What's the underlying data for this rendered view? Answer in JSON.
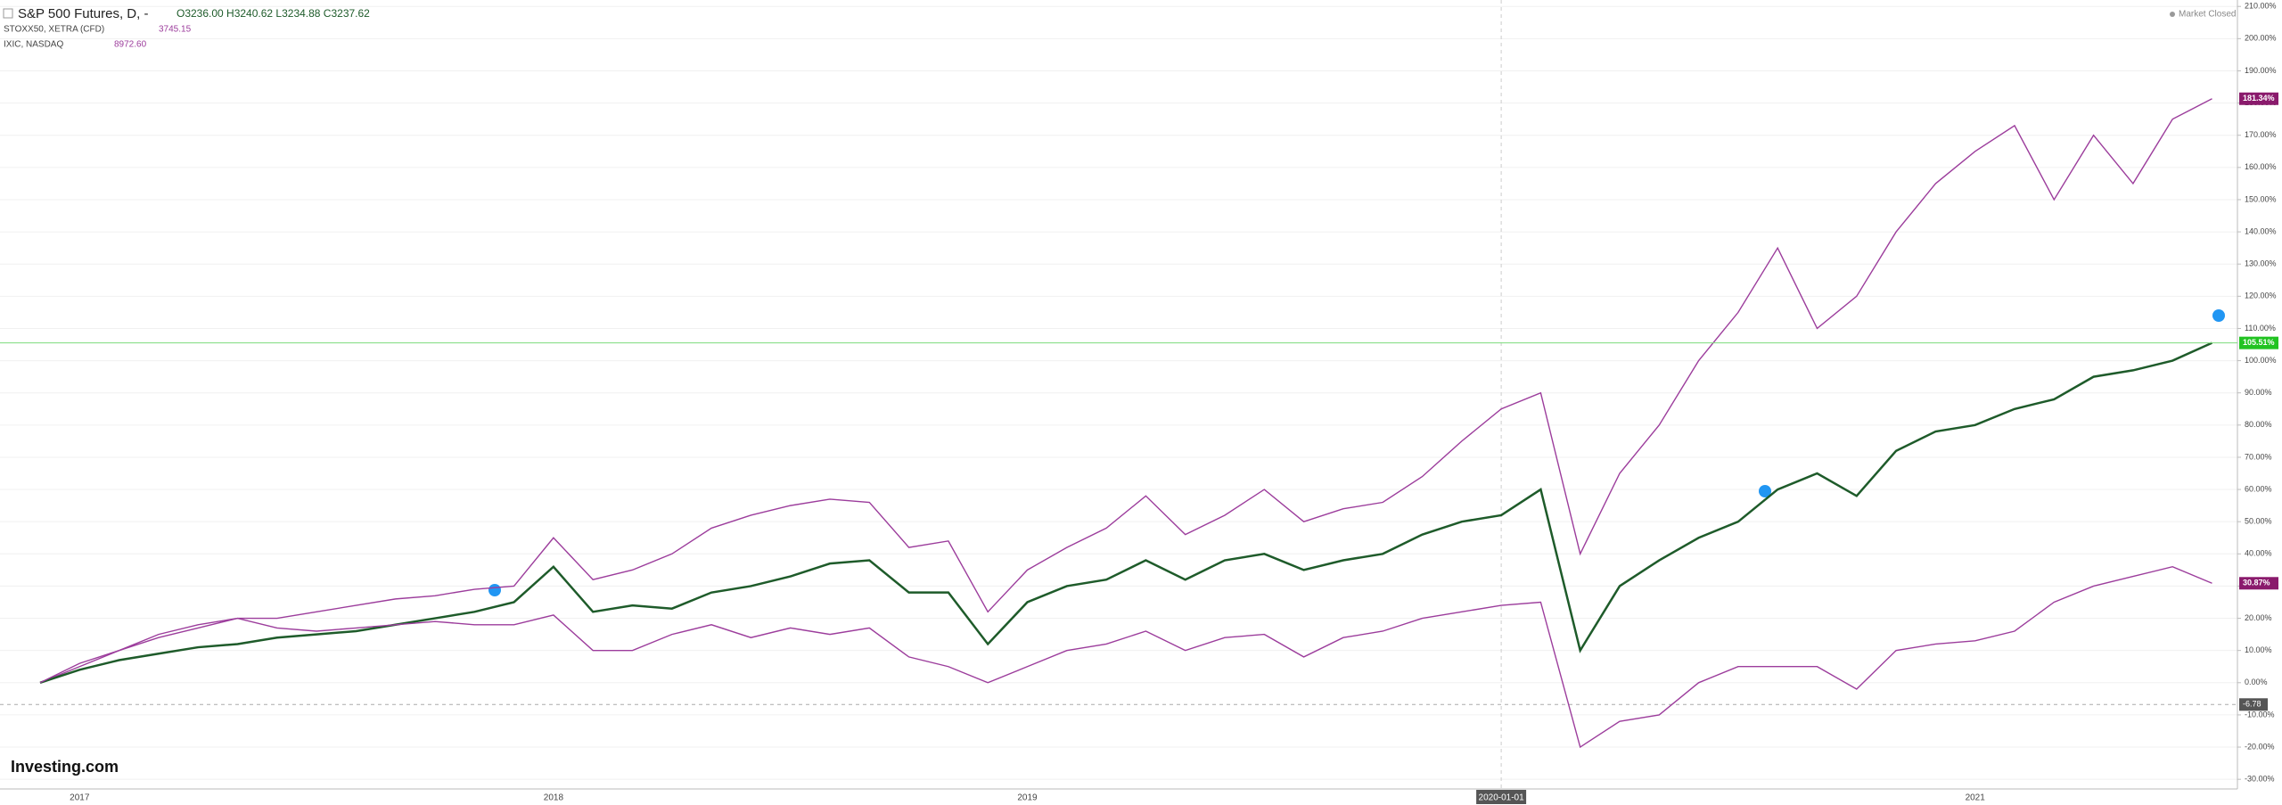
{
  "chart_data": {
    "type": "line",
    "title": "S&P 500 Futures, D, -",
    "ohlc": "O3236.00 H3240.62 L3234.88 C3237.62",
    "status": "Market Closed",
    "logo": "Investing.com",
    "categories": [
      null,
      "2017",
      null,
      null,
      null,
      null,
      null,
      null,
      null,
      null,
      null,
      null,
      null,
      "2018",
      null,
      null,
      null,
      null,
      null,
      null,
      null,
      null,
      null,
      null,
      null,
      "2019",
      null,
      null,
      null,
      null,
      null,
      null,
      null,
      null,
      null,
      null,
      null,
      "2020-01-01",
      null,
      null,
      null,
      null,
      null,
      null,
      null,
      null,
      null,
      null,
      null,
      "2021",
      null,
      null,
      null,
      null,
      null,
      null
    ],
    "series": [
      {
        "name": "IXIC, NASDAQ",
        "last": "8972.60",
        "color": "#9c3d9c",
        "values": [
          0,
          5,
          10,
          14,
          17,
          20,
          20,
          22,
          24,
          26,
          27,
          29,
          30,
          45,
          32,
          35,
          40,
          48,
          52,
          55,
          57,
          56,
          42,
          44,
          22,
          35,
          42,
          48,
          58,
          46,
          52,
          60,
          50,
          54,
          56,
          64,
          75,
          85,
          90,
          40,
          65,
          80,
          100,
          115,
          135,
          110,
          120,
          140,
          155,
          165,
          173,
          150,
          170,
          155,
          175,
          181.34
        ],
        "value_labels": [
          null,
          null,
          null,
          null,
          null,
          null,
          null,
          null,
          null,
          null,
          null,
          null,
          null,
          null,
          null,
          null,
          null,
          null,
          null,
          null,
          null,
          null,
          null,
          null,
          null,
          null,
          null,
          null,
          null,
          null,
          null,
          null,
          null,
          null,
          null,
          null,
          null,
          null,
          null,
          null,
          null,
          null,
          null,
          null,
          null,
          null,
          null,
          null,
          null,
          null,
          null,
          null,
          null,
          null,
          null,
          "181.34%"
        ]
      },
      {
        "name": "S&P 500 Futures, D,",
        "color": "#1e5b2a",
        "values": [
          0,
          4,
          7,
          9,
          11,
          12,
          14,
          15,
          16,
          18,
          20,
          22,
          25,
          36,
          22,
          24,
          23,
          28,
          30,
          33,
          37,
          38,
          28,
          28,
          12,
          25,
          30,
          32,
          38,
          32,
          38,
          40,
          35,
          38,
          40,
          46,
          50,
          52,
          60,
          10,
          30,
          38,
          45,
          50,
          60,
          65,
          58,
          72,
          78,
          80,
          85,
          88,
          95,
          97,
          100,
          105.51
        ],
        "value_labels": [
          null,
          null,
          null,
          null,
          null,
          null,
          null,
          null,
          null,
          null,
          null,
          null,
          null,
          null,
          null,
          null,
          null,
          null,
          null,
          null,
          null,
          null,
          null,
          null,
          null,
          null,
          null,
          null,
          null,
          null,
          null,
          null,
          null,
          null,
          null,
          null,
          null,
          null,
          null,
          null,
          null,
          null,
          null,
          null,
          null,
          null,
          null,
          null,
          null,
          null,
          null,
          null,
          null,
          null,
          null,
          "105.51%"
        ]
      },
      {
        "name": "STOXX50, XETRA (CFD)",
        "last": "3745.15",
        "color": "#9c3d9c",
        "values": [
          0,
          6,
          10,
          15,
          18,
          20,
          17,
          16,
          17,
          18,
          19,
          18,
          18,
          21,
          10,
          10,
          15,
          18,
          14,
          17,
          15,
          17,
          8,
          5,
          0,
          5,
          10,
          12,
          16,
          10,
          14,
          15,
          8,
          14,
          16,
          20,
          22,
          24,
          25,
          -20,
          -12,
          -10,
          0,
          5,
          5,
          5,
          -2,
          10,
          12,
          13,
          16,
          25,
          30,
          33,
          36,
          30.87
        ],
        "value_labels": [
          null,
          null,
          null,
          null,
          null,
          null,
          null,
          null,
          null,
          null,
          null,
          null,
          null,
          null,
          null,
          null,
          null,
          null,
          null,
          null,
          null,
          null,
          null,
          null,
          null,
          null,
          null,
          null,
          null,
          null,
          null,
          null,
          null,
          null,
          null,
          null,
          null,
          null,
          null,
          null,
          null,
          null,
          null,
          null,
          null,
          null,
          null,
          null,
          null,
          null,
          null,
          null,
          null,
          null,
          null,
          "30.87%"
        ]
      }
    ],
    "crosshair_y": -6.78,
    "ylim": [
      -33,
      212
    ],
    "yticks": [
      {
        "value": -30,
        "label": "-30.00%"
      },
      {
        "value": -20,
        "label": "-20.00%"
      },
      {
        "value": -10,
        "label": "-10.00%"
      },
      {
        "value": 0,
        "label": "0.00%"
      },
      {
        "value": 10,
        "label": "10.00%"
      },
      {
        "value": 20,
        "label": "20.00%"
      },
      {
        "value": 30,
        "label": "30.00%"
      },
      {
        "value": 40,
        "label": "40.00%"
      },
      {
        "value": 50,
        "label": "50.00%"
      },
      {
        "value": 60,
        "label": "60.00%"
      },
      {
        "value": 70,
        "label": "70.00%"
      },
      {
        "value": 80,
        "label": "80.00%"
      },
      {
        "value": 90,
        "label": "90.00%"
      },
      {
        "value": 100,
        "label": "100.00%"
      },
      {
        "value": 110,
        "label": "110.00%"
      },
      {
        "value": 120,
        "label": "120.00%"
      },
      {
        "value": 130,
        "label": "130.00%"
      },
      {
        "value": 140,
        "label": "140.00%"
      },
      {
        "value": 150,
        "label": "150.00%"
      },
      {
        "value": 160,
        "label": "160.00%"
      },
      {
        "value": 170,
        "label": "170.00%"
      },
      {
        "value": 180,
        "label": "180.00%"
      },
      {
        "value": 190,
        "label": "190.00%"
      },
      {
        "value": 200,
        "label": "200.00%"
      },
      {
        "value": 210,
        "label": "210.00%"
      }
    ],
    "grid": true
  }
}
